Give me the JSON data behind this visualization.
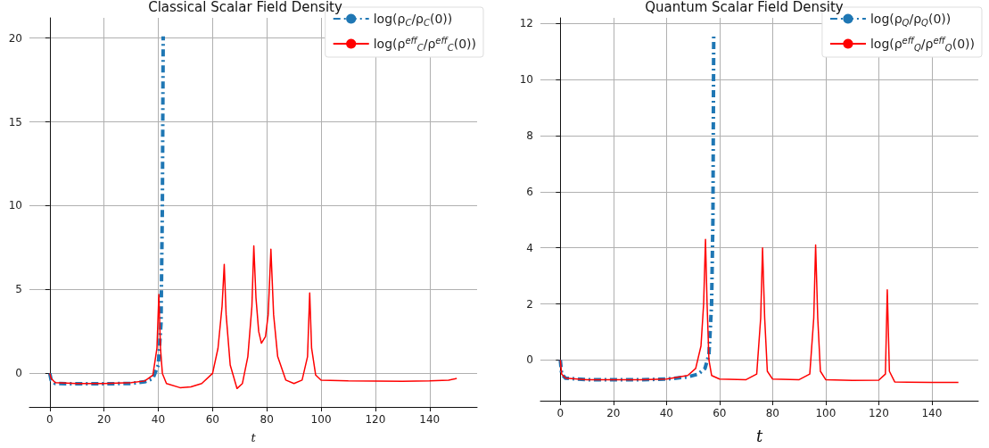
{
  "chart_data": [
    {
      "type": "line",
      "title": "Classical Scalar Field Density",
      "xlabel": "t",
      "xlim": [
        -7.5,
        157.5
      ],
      "ylim": [
        -2,
        21.2
      ],
      "xticks": [
        0,
        20,
        40,
        60,
        80,
        100,
        120,
        140
      ],
      "yticks": [
        0,
        5,
        10,
        15,
        20
      ],
      "grid": true,
      "legend": "top right",
      "marker": "none",
      "series": [
        {
          "name": "log(ρ$_{C}$/ρ$_{C}$(0))",
          "color": "#1f77b4",
          "line_style": "dashed",
          "x": [
            0,
            0.5,
            2,
            10,
            20,
            30,
            35,
            38,
            40,
            41,
            41.5,
            41.8
          ],
          "values": [
            0,
            -0.4,
            -0.6,
            -0.62,
            -0.62,
            -0.6,
            -0.5,
            -0.3,
            0.5,
            3,
            10,
            20.1
          ]
        },
        {
          "name": "log(ρ$^{eff}$$_{C}$/ρ$^{eff}$$_{C}$(0))",
          "color": "#ff0000",
          "line_style": "solid",
          "x": [
            0,
            0.5,
            2,
            10,
            20,
            30,
            35,
            38,
            39.5,
            40.2,
            40.8,
            41.5,
            43,
            48,
            52,
            56,
            60,
            62,
            63.5,
            64.3,
            65,
            66.5,
            69,
            71,
            73,
            74.5,
            75.2,
            76,
            77,
            78,
            79.5,
            80.5,
            81.5,
            82.5,
            84,
            87,
            90,
            93,
            95,
            95.8,
            96.5,
            98,
            100,
            110,
            130,
            140,
            147,
            150
          ],
          "values": [
            0,
            -0.3,
            -0.55,
            -0.6,
            -0.6,
            -0.55,
            -0.45,
            -0.1,
            1.5,
            4.7,
            1.5,
            0,
            -0.6,
            -0.85,
            -0.8,
            -0.6,
            0,
            1.5,
            4,
            6.5,
            3.5,
            0.5,
            -0.9,
            -0.6,
            1,
            4,
            7.6,
            4.5,
            2.5,
            1.8,
            2.2,
            3.5,
            7.4,
            3.5,
            1,
            -0.4,
            -0.6,
            -0.4,
            1,
            4.8,
            1.5,
            -0.1,
            -0.4,
            -0.45,
            -0.47,
            -0.45,
            -0.4,
            -0.3
          ]
        }
      ]
    },
    {
      "type": "line",
      "title": "Quantum Scalar Field Density",
      "xlabel": "t",
      "xlim": [
        -7.5,
        157.5
      ],
      "ylim": [
        -1.45,
        12.2
      ],
      "xticks": [
        0,
        20,
        40,
        60,
        80,
        100,
        120,
        140
      ],
      "yticks": [
        0,
        2,
        4,
        6,
        8,
        10,
        12
      ],
      "grid": true,
      "legend": "top right",
      "marker": "none",
      "series": [
        {
          "name": "log(ρ$_{Q}$/ρ$_{Q}$(0))",
          "color": "#1f77b4",
          "line_style": "dashed",
          "x": [
            0,
            0.5,
            2,
            10,
            30,
            40,
            48,
            52,
            54.5,
            56,
            57,
            57.5,
            57.8
          ],
          "values": [
            0,
            -0.5,
            -0.65,
            -0.7,
            -0.7,
            -0.68,
            -0.6,
            -0.5,
            -0.3,
            0.2,
            2,
            5,
            11.6
          ]
        },
        {
          "name": "log(ρ$^{eff}$$_{Q}$/ρ$^{eff}$$_{Q}$(0))",
          "color": "#ff0000",
          "line_style": "solid",
          "x": [
            0,
            0.5,
            2,
            10,
            30,
            40,
            48,
            51,
            53,
            54,
            54.7,
            55.3,
            56,
            57,
            60,
            70,
            74,
            75.5,
            76.2,
            77,
            78,
            80,
            90,
            94,
            95.5,
            96.2,
            97,
            98,
            100,
            110,
            120,
            122.5,
            123.2,
            124,
            126,
            140,
            150
          ],
          "values": [
            0,
            -0.5,
            -0.65,
            -0.7,
            -0.7,
            -0.68,
            -0.55,
            -0.3,
            0.5,
            2,
            4.3,
            2,
            0,
            -0.55,
            -0.68,
            -0.7,
            -0.5,
            1.5,
            4,
            1.5,
            -0.4,
            -0.68,
            -0.7,
            -0.5,
            1.5,
            4.1,
            1.5,
            -0.4,
            -0.7,
            -0.73,
            -0.72,
            -0.5,
            2.5,
            -0.4,
            -0.78,
            -0.8,
            -0.8
          ]
        }
      ]
    }
  ]
}
